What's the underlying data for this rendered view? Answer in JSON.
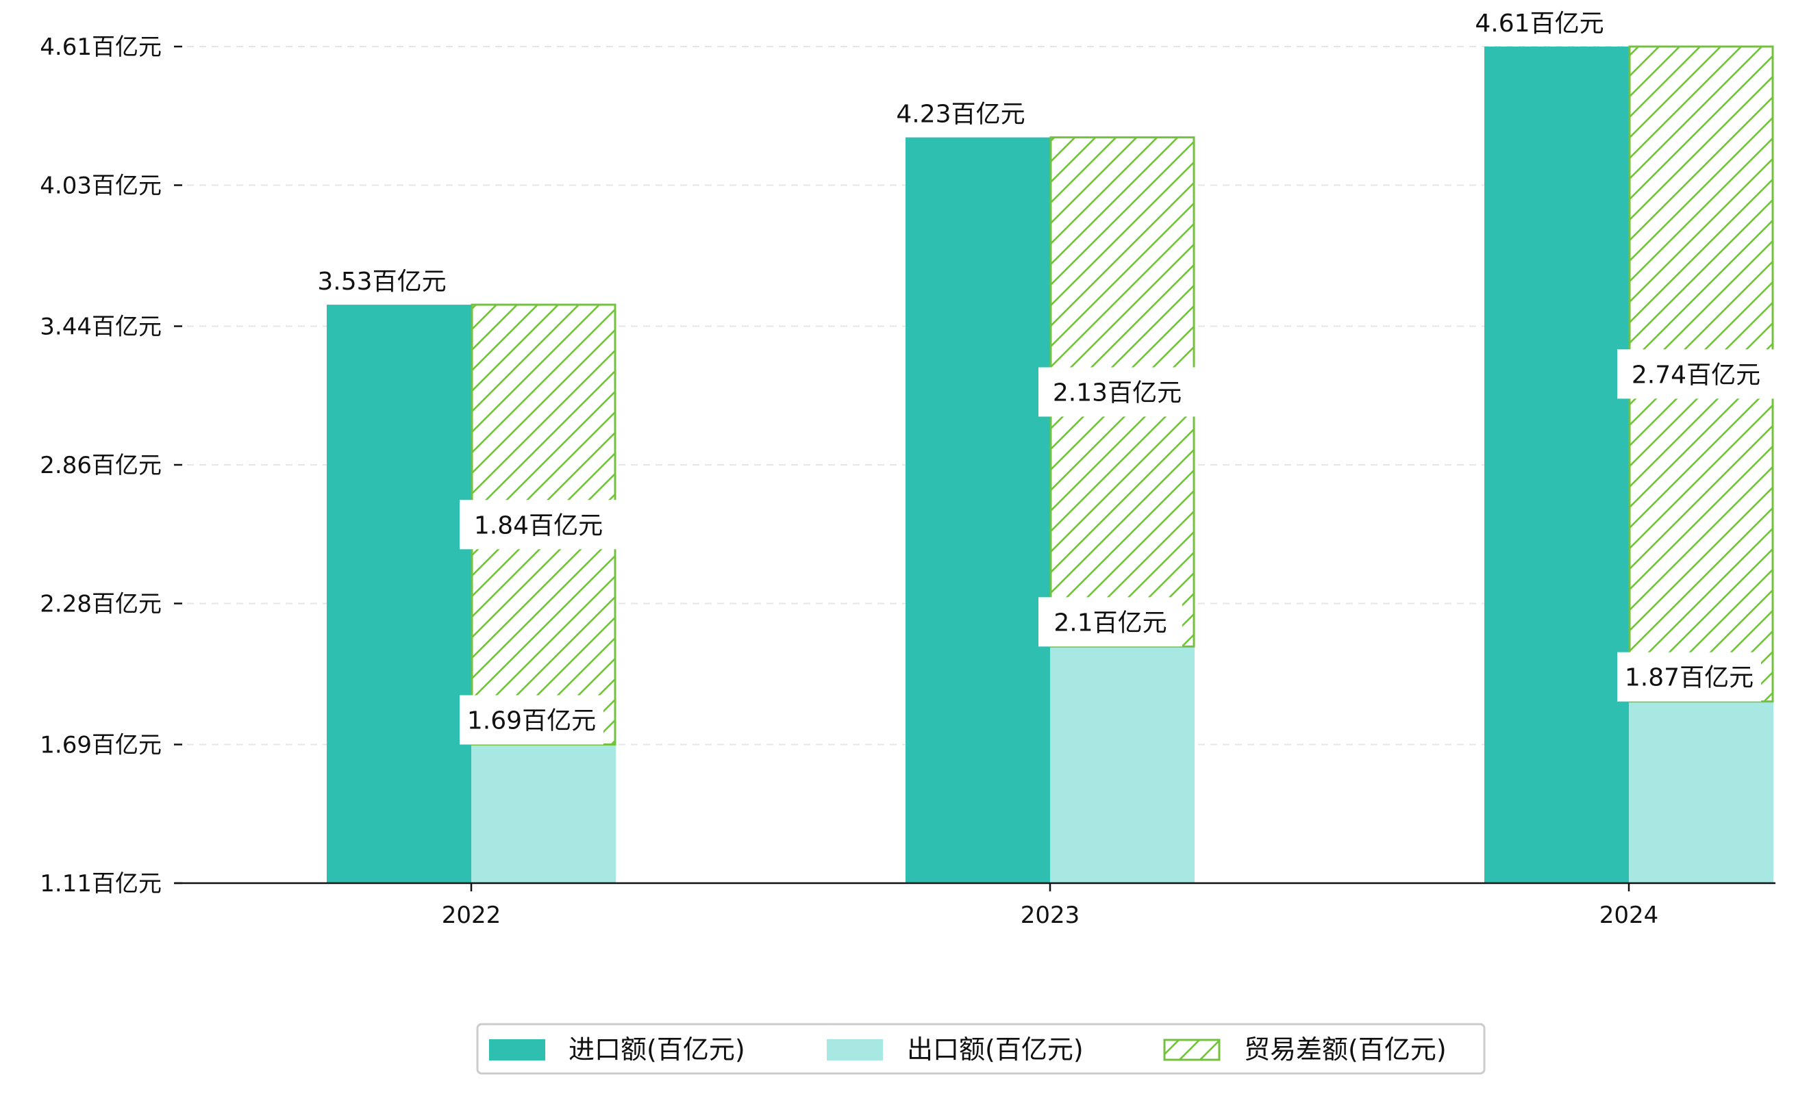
{
  "chart_data": {
    "type": "bar",
    "categories": [
      "2022",
      "2023",
      "2024"
    ],
    "series": [
      {
        "name": "进口额(百亿元)",
        "values": [
          3.53,
          4.23,
          4.61
        ],
        "color": "#2ebfb1",
        "style": "solid"
      },
      {
        "name": "出口额(百亿元)",
        "values": [
          1.69,
          2.1,
          1.87
        ],
        "color": "#a8e8e2",
        "style": "solid"
      },
      {
        "name": "贸易差额(百亿元)",
        "values": [
          1.84,
          2.13,
          2.74
        ],
        "color": "#73c13f",
        "style": "hatch",
        "stacked_on": "出口额(百亿元)"
      }
    ],
    "data_labels": [
      [
        "3.53百亿元",
        "4.23百亿元",
        "4.61百亿元"
      ],
      [
        "1.69百亿元",
        "2.1百亿元",
        "1.87百亿元"
      ],
      [
        "1.84百亿元",
        "2.13百亿元",
        "2.74百亿元"
      ]
    ],
    "yticks": [
      1.11,
      1.69,
      2.28,
      2.86,
      3.44,
      4.03,
      4.61
    ],
    "ytick_labels": [
      "1.11百亿元",
      "1.69百亿元",
      "2.28百亿元",
      "2.86百亿元",
      "3.44百亿元",
      "4.03百亿元",
      "4.61百亿元"
    ],
    "ylim": [
      1.11,
      4.61
    ],
    "grid": "horizontal dashed",
    "legend_position": "bottom-center"
  }
}
